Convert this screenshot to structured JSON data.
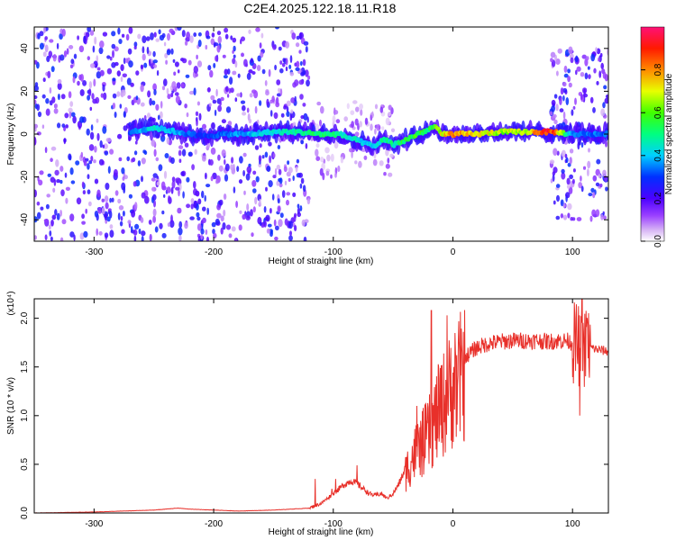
{
  "title": "C2E4.2025.122.18.11.R18",
  "colors": {
    "snr_line": "#e8302a",
    "frame": "#000000",
    "background": "#ffffff"
  },
  "chart_data": [
    {
      "type": "heatmap",
      "xlabel": "Height of straight line (km)",
      "ylabel": "Frequency (Hz)",
      "xlim": [
        -350,
        130
      ],
      "ylim": [
        -50,
        50
      ],
      "x_ticks": [
        -300,
        -200,
        -100,
        0,
        100
      ],
      "x_tick_labels": [
        "-300",
        "-200",
        "-100",
        "0",
        "100"
      ],
      "y_ticks": [
        -40,
        -20,
        0,
        20,
        40
      ],
      "y_tick_labels": [
        "-40",
        "-20",
        "0",
        "20",
        "40"
      ],
      "colorbar": {
        "label": "Normalized spectral amplitude",
        "range": [
          0.0,
          1.0
        ],
        "ticks": [
          0.0,
          0.2,
          0.4,
          0.6,
          0.8
        ],
        "tick_labels": [
          "0.0",
          "0.2",
          "0.4",
          "0.6",
          "0.8"
        ],
        "colormap": "rainbow (white-violet-blue-cyan-green-yellow-red-magenta)"
      },
      "ridge_x": [
        -270,
        -250,
        -230,
        -210,
        -190,
        -170,
        -150,
        -130,
        -110,
        -95,
        -85,
        -75,
        -65,
        -58,
        -50,
        -40,
        -30,
        -20,
        -15,
        -10,
        0,
        20,
        40,
        60,
        80,
        85,
        100,
        120,
        130
      ],
      "ridge_freq": [
        1,
        3,
        1,
        -1,
        0,
        0,
        1,
        1,
        0,
        0,
        -2,
        -4,
        -6,
        -2,
        -5,
        -3,
        0,
        2,
        4,
        0,
        0,
        0,
        1,
        1,
        1,
        1,
        0,
        0,
        0
      ],
      "ridge_amp": [
        0.35,
        0.45,
        0.4,
        0.3,
        0.35,
        0.4,
        0.45,
        0.5,
        0.55,
        0.5,
        0.45,
        0.45,
        0.4,
        0.5,
        0.5,
        0.55,
        0.6,
        0.55,
        0.6,
        0.75,
        0.85,
        0.75,
        0.7,
        0.7,
        0.95,
        0.85,
        0.35,
        0.35,
        0.35
      ],
      "noise_regions": [
        {
          "x_range": [
            -350,
            -120
          ],
          "freq_range": [
            -50,
            50
          ],
          "amp_range": [
            0.05,
            0.3
          ]
        },
        {
          "x_range": [
            -120,
            -50
          ],
          "freq_range": [
            -20,
            15
          ],
          "amp_range": [
            0.03,
            0.15
          ]
        },
        {
          "x_range": [
            82,
            130
          ],
          "freq_range": [
            -40,
            40
          ],
          "amp_range": [
            0.05,
            0.3
          ]
        }
      ]
    },
    {
      "type": "line",
      "xlabel": "Height of straight line (km)",
      "ylabel": "SNR (10 * v/v)",
      "scale_label": "(x10⁴)",
      "xlim": [
        -350,
        130
      ],
      "ylim": [
        0,
        2.2
      ],
      "x_ticks": [
        -300,
        -200,
        -100,
        0,
        100
      ],
      "x_tick_labels": [
        "-300",
        "-200",
        "-100",
        "0",
        "100"
      ],
      "y_ticks": [
        0.0,
        0.5,
        1.0,
        1.5,
        2.0
      ],
      "y_tick_labels": [
        "0.0",
        "0.5",
        "1.0",
        "1.5",
        "2.0"
      ],
      "series": [
        {
          "x": [
            -350,
            -300,
            -250,
            -230,
            -220,
            -200,
            -180,
            -150,
            -120,
            -110,
            -100,
            -95,
            -90,
            -85,
            -80,
            -75,
            -70,
            -65,
            -60,
            -55,
            -50,
            -45,
            -40,
            -35,
            -30,
            -25,
            -20,
            -15,
            -10,
            -5,
            0,
            5,
            10,
            20,
            30,
            40,
            50,
            60,
            70,
            80,
            90,
            95,
            100,
            105,
            108,
            110,
            115,
            120,
            125,
            130
          ],
          "y": [
            0.0,
            0.01,
            0.03,
            0.05,
            0.04,
            0.03,
            0.02,
            0.03,
            0.05,
            0.1,
            0.2,
            0.25,
            0.3,
            0.33,
            0.3,
            0.25,
            0.2,
            0.18,
            0.2,
            0.15,
            0.2,
            0.3,
            0.45,
            0.6,
            0.72,
            0.8,
            0.9,
            1.05,
            1.2,
            1.3,
            1.45,
            1.52,
            1.6,
            1.7,
            1.74,
            1.76,
            1.77,
            1.77,
            1.77,
            1.76,
            1.77,
            1.77,
            1.75,
            1.72,
            1.7,
            1.7,
            1.7,
            1.68,
            1.67,
            1.66
          ],
          "spikes": [
            {
              "x": -115,
              "y": 0.35
            },
            {
              "x": -101,
              "y": 0.25
            },
            {
              "x": -98,
              "y": 0.35
            },
            {
              "x": -80,
              "y": 0.49
            },
            {
              "x": -30,
              "y": 1.1
            },
            {
              "x": -18,
              "y": 2.08
            },
            {
              "x": -12,
              "y": 1.5
            },
            {
              "x": -5,
              "y": 2.03
            },
            {
              "x": 106,
              "y": 1.0
            },
            {
              "x": 108,
              "y": 2.2
            },
            {
              "x": 112,
              "y": 2.0
            }
          ]
        }
      ]
    }
  ]
}
